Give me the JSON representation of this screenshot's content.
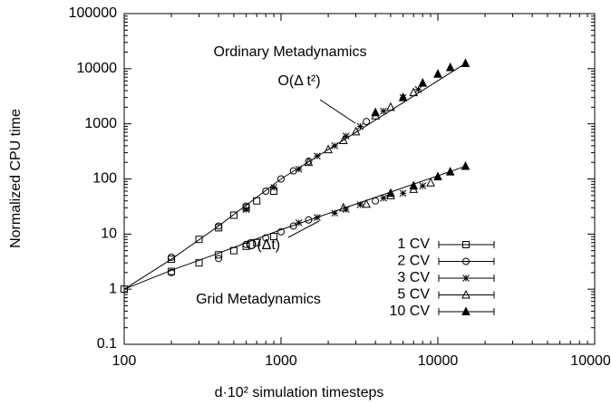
{
  "chart_data": {
    "type": "scatter",
    "xlabel": "d·10² simulation timesteps",
    "ylabel": "Normalized CPU time",
    "log_x": true,
    "log_y": true,
    "xlim": [
      100,
      100000
    ],
    "xticks": [
      100,
      1000,
      10000,
      100000
    ],
    "ylim": [
      0.1,
      100000
    ],
    "yticks": [
      0.1,
      1,
      10,
      100,
      1000,
      10000,
      100000
    ],
    "legend": "lower right",
    "color": "#000000",
    "annotations": [
      "Ordinary Metadynamics",
      "O(Δ t²)",
      "O(Δt)",
      "Grid Metadynamics"
    ],
    "lines": [
      {
        "x": [
          100,
          200,
          400,
          1000,
          3000,
          15000
        ],
        "values": [
          1,
          3.5,
          14,
          100,
          700,
          12500
        ]
      },
      {
        "x": [
          100,
          200,
          400,
          1000,
          3000,
          15000
        ],
        "values": [
          1,
          2.2,
          4.5,
          12,
          35,
          170
        ]
      }
    ],
    "series": [
      {
        "name": "1 CV",
        "marker": "square",
        "x": [
          100,
          200,
          300,
          400,
          500,
          600,
          700,
          900,
          200,
          300,
          400,
          500,
          600,
          700,
          900
        ],
        "values": [
          1,
          3.5,
          8,
          13,
          22,
          30,
          40,
          60,
          2.1,
          3,
          4.2,
          5,
          6,
          7,
          9
        ]
      },
      {
        "name": "2 CV",
        "marker": "circle",
        "x": [
          200,
          400,
          600,
          800,
          1000,
          1200,
          1500,
          3500,
          200,
          400,
          600,
          800,
          1000,
          1200,
          1500,
          4000
        ],
        "values": [
          3.8,
          14,
          32,
          60,
          100,
          140,
          210,
          1100,
          2,
          3.6,
          6.5,
          8.5,
          11,
          14,
          18,
          40
        ]
      },
      {
        "name": "3 CV",
        "marker": "star",
        "x": [
          600,
          900,
          1300,
          1700,
          2200,
          2600,
          3200,
          4500,
          6000,
          7500,
          1300,
          1700,
          2200,
          2600,
          3200,
          4500,
          6000,
          8000
        ],
        "values": [
          28,
          70,
          150,
          260,
          400,
          600,
          900,
          1700,
          3000,
          4200,
          16,
          20,
          24,
          28,
          34,
          45,
          55,
          75
        ]
      },
      {
        "name": "5 CV",
        "marker": "triangle",
        "x": [
          1500,
          2000,
          2500,
          3000,
          4000,
          5000,
          7000,
          2500,
          3500,
          5000,
          7000,
          9000
        ],
        "values": [
          200,
          340,
          500,
          720,
          1400,
          2000,
          3700,
          30,
          35,
          50,
          65,
          85
        ]
      },
      {
        "name": "10 CV",
        "marker": "filled-triangle",
        "x": [
          4000,
          6000,
          8000,
          10000,
          12000,
          15000,
          5000,
          7000,
          10000,
          12000,
          15000
        ],
        "values": [
          1600,
          3000,
          5500,
          8000,
          10500,
          12500,
          55,
          75,
          110,
          135,
          170
        ]
      }
    ]
  }
}
